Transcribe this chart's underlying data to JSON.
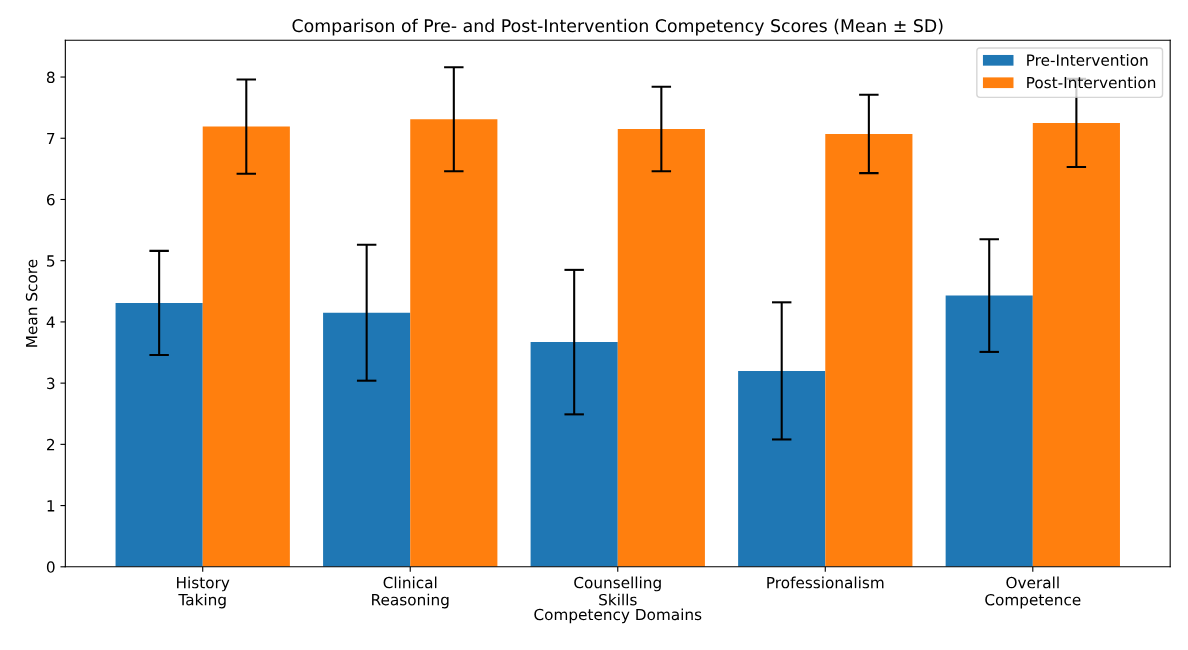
{
  "chart_data": {
    "type": "bar",
    "title": "Comparison of Pre- and Post-Intervention Competency Scores (Mean ± SD)",
    "xlabel": "Competency Domains",
    "ylabel": "Mean Score",
    "categories": [
      "History\nTaking",
      "Clinical\nReasoning",
      "Counselling\nSkills",
      "Professionalism",
      "Overall\nCompetence"
    ],
    "series": [
      {
        "name": "Pre-Intervention",
        "color": "#1f77b4",
        "values": [
          4.31,
          4.15,
          3.67,
          3.2,
          4.43
        ],
        "errors": [
          0.85,
          1.11,
          1.18,
          1.12,
          0.92
        ]
      },
      {
        "name": "Post-Intervention",
        "color": "#ff7f0e",
        "values": [
          7.19,
          7.31,
          7.15,
          7.07,
          7.25
        ],
        "errors": [
          0.77,
          0.85,
          0.69,
          0.64,
          0.72
        ]
      }
    ],
    "ylim": [
      0,
      8.6
    ],
    "yticks": [
      0,
      1,
      2,
      3,
      4,
      5,
      6,
      7,
      8
    ],
    "legend": "top right",
    "grid": false
  }
}
